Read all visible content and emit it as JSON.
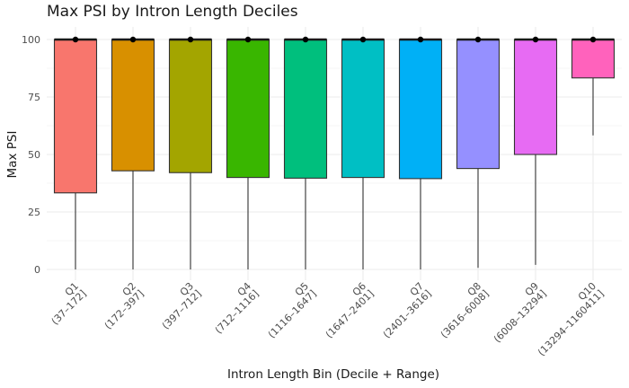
{
  "chart_data": {
    "type": "boxplot",
    "title": "Max PSI by Intron Length Deciles",
    "xlabel": "Intron Length Bin (Decile + Range)",
    "ylabel": "Max PSI",
    "ylim": [
      0,
      100
    ],
    "yticks": [
      0,
      25,
      50,
      75,
      100
    ],
    "grid": true,
    "legend": "none",
    "categories": [
      "Q1\n(37–172]",
      "Q2\n(172–397]",
      "Q3\n(397–712]",
      "Q4\n(712–1116]",
      "Q5\n(1116–1647]",
      "Q6\n(1647–2401]",
      "Q7\n(2401–3616]",
      "Q8\n(3616–6008]",
      "Q9\n(6008–13294]",
      "Q10\n(13294–1160411]"
    ],
    "boxes": [
      {
        "min": 0,
        "q1": 33.3,
        "median": 100,
        "q3": 100,
        "max": 100,
        "color": "#F8766D"
      },
      {
        "min": 0,
        "q1": 42.9,
        "median": 100,
        "q3": 100,
        "max": 100,
        "color": "#D89000"
      },
      {
        "min": 0,
        "q1": 42.1,
        "median": 100,
        "q3": 100,
        "max": 100,
        "color": "#A3A500"
      },
      {
        "min": 0,
        "q1": 40.0,
        "median": 100,
        "q3": 100,
        "max": 100,
        "color": "#39B600"
      },
      {
        "min": 0,
        "q1": 39.7,
        "median": 100,
        "q3": 100,
        "max": 100,
        "color": "#00BF7D"
      },
      {
        "min": 0,
        "q1": 40.0,
        "median": 100,
        "q3": 100,
        "max": 100,
        "color": "#00BFC4"
      },
      {
        "min": 0,
        "q1": 39.5,
        "median": 100,
        "q3": 100,
        "max": 100,
        "color": "#00B0F6"
      },
      {
        "min": 0.7,
        "q1": 43.9,
        "median": 100,
        "q3": 100,
        "max": 100,
        "color": "#9590FF"
      },
      {
        "min": 2.0,
        "q1": 50.0,
        "median": 100,
        "q3": 100,
        "max": 100,
        "color": "#E76BF3"
      },
      {
        "min": 58.3,
        "q1": 83.3,
        "median": 100,
        "q3": 100,
        "max": 100,
        "color": "#FF62BC"
      }
    ],
    "points": [
      100,
      100,
      100,
      100,
      100,
      100,
      100,
      100,
      100,
      100
    ]
  }
}
